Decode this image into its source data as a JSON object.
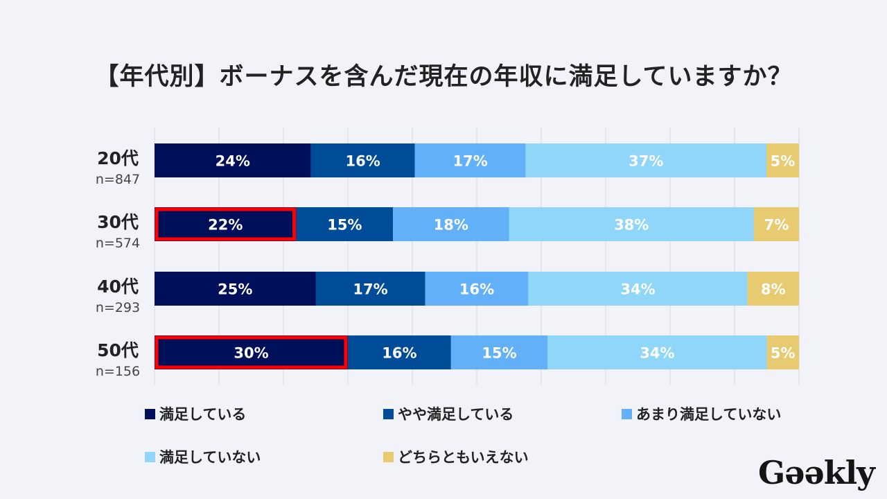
{
  "chart_data": {
    "type": "bar",
    "orientation": "horizontal",
    "stacked": true,
    "title": "【年代別】ボーナスを含んだ現在の年収に満足していますか？",
    "xlim": [
      0,
      100
    ],
    "grid": true,
    "legend_position": "bottom",
    "categories": [
      "20代",
      "30代",
      "40代",
      "50代"
    ],
    "sample_sizes": [
      "n=847",
      "n=574",
      "n=293",
      "n=156"
    ],
    "series": [
      {
        "name": "満足している",
        "color": "#000f5a",
        "values": [
          24,
          22,
          25,
          30
        ]
      },
      {
        "name": "やや満足している",
        "color": "#004c98",
        "values": [
          16,
          15,
          17,
          16
        ]
      },
      {
        "name": "あまり満足していない",
        "color": "#62b0f8",
        "values": [
          17,
          18,
          16,
          15
        ]
      },
      {
        "name": "満足していない",
        "color": "#8fd6f8",
        "values": [
          37,
          38,
          34,
          34
        ]
      },
      {
        "name": "どちらともいえない",
        "color": "#e8cb70",
        "values": [
          5,
          7,
          8,
          5
        ]
      }
    ],
    "value_suffix": "%",
    "highlighted": [
      {
        "category": "30代",
        "series": "満足している"
      },
      {
        "category": "50代",
        "series": "満足している"
      }
    ],
    "highlight_color": "#ff0000"
  },
  "logo": "Geekly"
}
